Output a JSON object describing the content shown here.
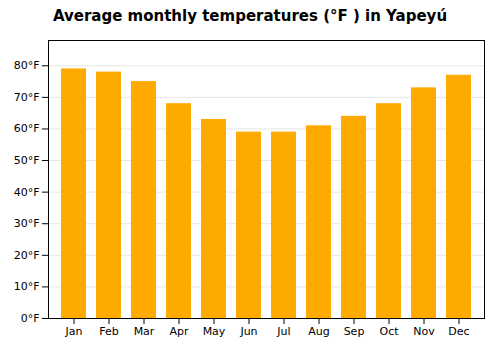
{
  "chart_data": {
    "type": "bar",
    "title": "Average monthly temperatures (°F ) in Yapeyú",
    "categories": [
      "Jan",
      "Feb",
      "Mar",
      "Apr",
      "May",
      "Jun",
      "Jul",
      "Aug",
      "Sep",
      "Oct",
      "Nov",
      "Dec"
    ],
    "values": [
      79,
      78,
      75,
      68,
      63,
      59,
      59,
      61,
      64,
      68,
      73,
      77
    ],
    "color": "#FFAA00",
    "ylim": [
      0,
      88
    ],
    "yticks": [
      {
        "value": 0,
        "label": "0°F"
      },
      {
        "value": 10,
        "label": "10°F"
      },
      {
        "value": 20,
        "label": "20°F"
      },
      {
        "value": 30,
        "label": "30°F"
      },
      {
        "value": 40,
        "label": "40°F"
      },
      {
        "value": 50,
        "label": "50°F"
      },
      {
        "value": 60,
        "label": "60°F"
      },
      {
        "value": 70,
        "label": "70°F"
      },
      {
        "value": 80,
        "label": "80°F"
      }
    ],
    "grid": true
  }
}
